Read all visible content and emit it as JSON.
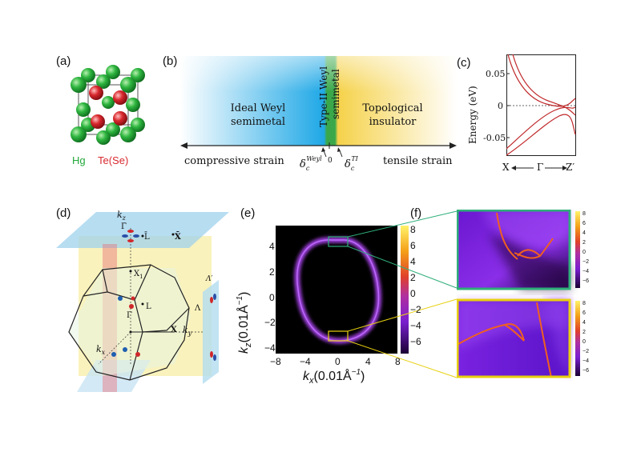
{
  "panels": {
    "a": {
      "label": "(a)",
      "legend": [
        {
          "text": "Hg",
          "color": "#22a83a"
        },
        {
          "text": "Te(Se)",
          "color": "#d8282e"
        }
      ]
    },
    "b": {
      "label": "(b)",
      "region_left": "Ideal Weyl\nsemimetal",
      "region_mid_1": "Type-II Weyl",
      "region_mid_2": "semimetal",
      "region_right": "Topological\ninsulator",
      "axis_left": "compressive strain",
      "axis_right": "tensile strain",
      "tick_zero": "0",
      "delta_weyl_sym": "δ",
      "delta_weyl_sub": "c",
      "delta_weyl_sup": "Weyl",
      "delta_ti_sym": "δ",
      "delta_ti_sub": "c",
      "delta_ti_sup": "TI",
      "colors": {
        "blue": "#1fa8e6",
        "green": "#3aa84a",
        "yellow": "#f5d24a"
      }
    },
    "c": {
      "label": "(c)",
      "ylabel": "Energy (eV)",
      "yticks": [
        "0.05",
        "0",
        "-0.05"
      ],
      "xlabel_left": "X",
      "xlabel_mid": "Γ",
      "xlabel_right": "Z′"
    },
    "d": {
      "label": "(d)",
      "labels": {
        "kz": "k",
        "kz_sub": "z",
        "ky": "k",
        "ky_sub": "y",
        "kx": "k",
        "kx_sub": "x",
        "Lbar": "L̄",
        "Xbar": "X̄",
        "Gbar": "Γ̄",
        "X1": "X",
        "X1_sub": "1",
        "L": "L",
        "Gamma": "Γ",
        "X": "X",
        "Lambda": "Λ",
        "Lambda_prime": "Λ′"
      }
    },
    "e": {
      "label": "(e)",
      "ylabel_main": "k",
      "ylabel_sub": "z",
      "ylabel_unit": "(0.01Å",
      "ylabel_sup": "−1",
      "ylabel_close": ")",
      "xlabel_main": "k",
      "xlabel_sub": "x",
      "xlabel_unit": "(0.01Å",
      "xlabel_sup": "−1",
      "xlabel_close": ")",
      "xticks": [
        "−8",
        "−4",
        "0",
        "4",
        "8"
      ],
      "yticks": [
        "4",
        "2",
        "0",
        "−2",
        "−4"
      ],
      "cbar_ticks": [
        "8",
        "6",
        "4",
        "2",
        "0",
        "−2",
        "−4",
        "−6"
      ]
    },
    "f": {
      "label": "(f)",
      "cbar_ticks": [
        "8",
        "6",
        "4",
        "2",
        "0",
        "−2",
        "−4",
        "−6"
      ],
      "frame_colors": {
        "top": "#2fae7a",
        "bottom": "#e8d010"
      }
    }
  }
}
